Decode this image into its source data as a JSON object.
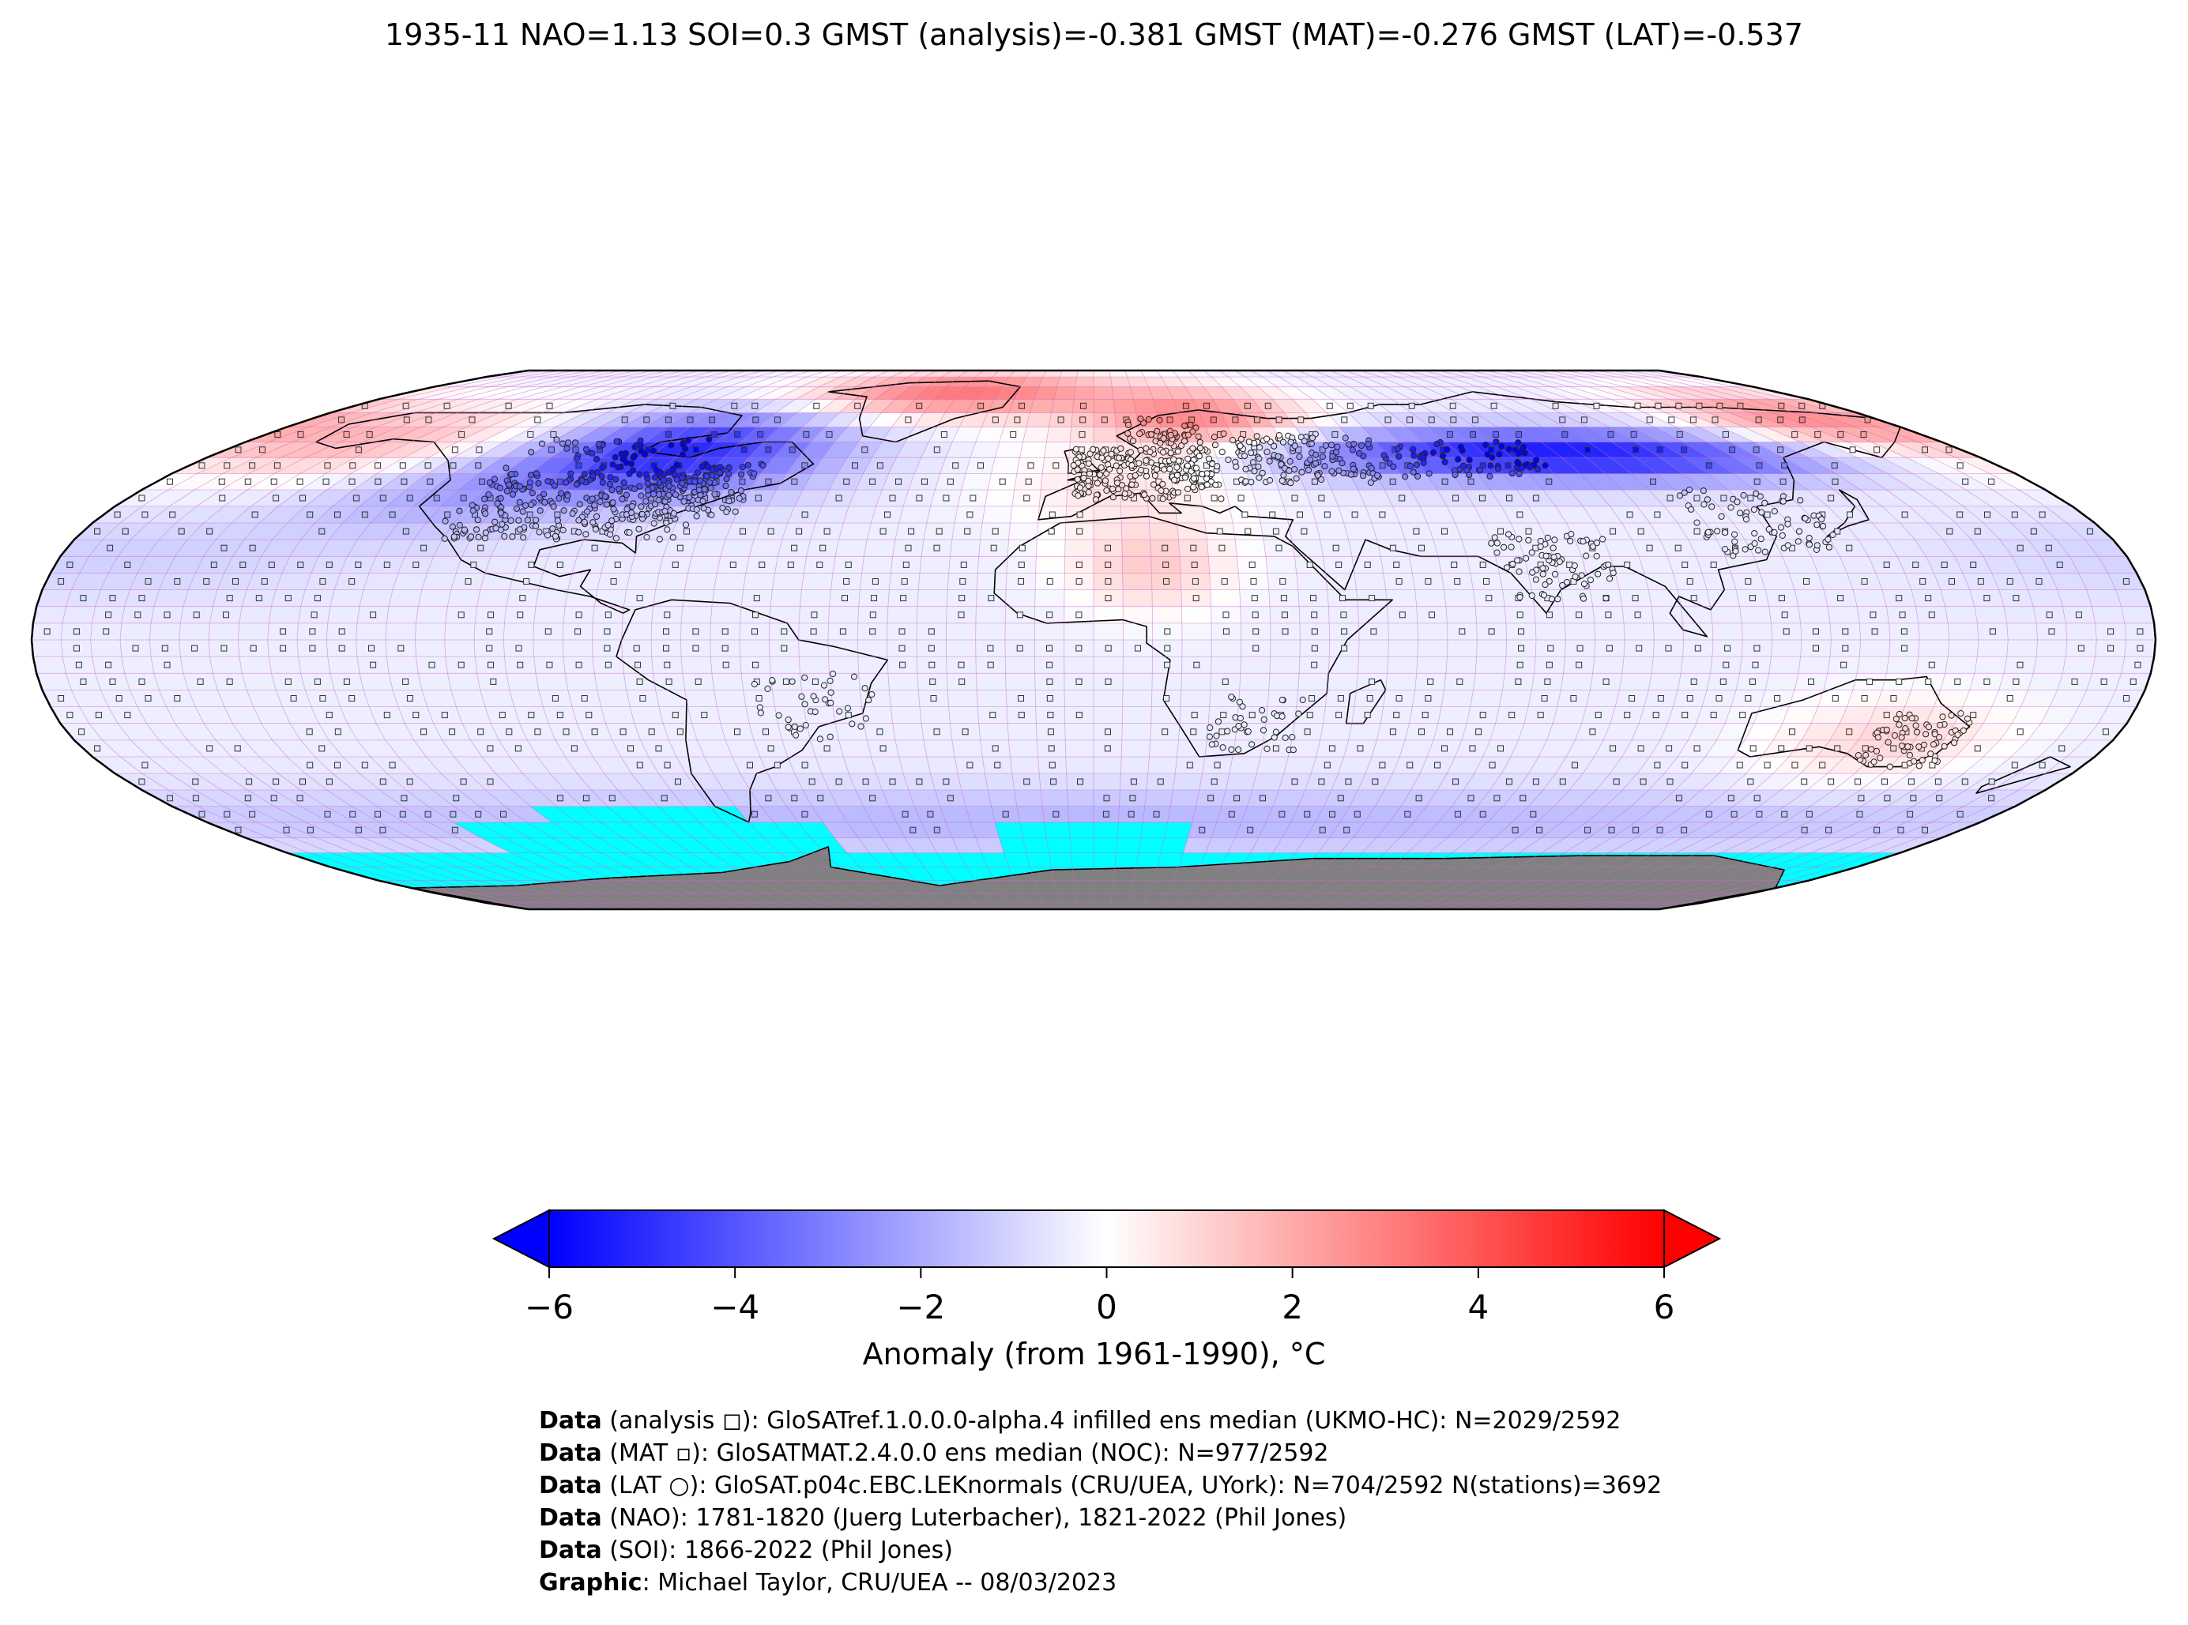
{
  "title": "1935-11 NAO=1.13 SOI=0.3 GMST (analysis)=-0.381 GMST (MAT)=-0.276 GMST (LAT)=-0.537",
  "colorbar": {
    "label": "Anomaly (from 1961-1990), °C",
    "ticks": [
      "−6",
      "−4",
      "−2",
      "0",
      "2",
      "4",
      "6"
    ],
    "min": -6,
    "max": 6,
    "colors": {
      "low": "#0000ff",
      "mid": "#ffffff",
      "high": "#ff0000"
    }
  },
  "map": {
    "projection": "Robinson",
    "grid_resolution_deg": 5,
    "missing_color": "#00ffff",
    "land_mask_color": "#808080",
    "gridline_color": "#cc66cc",
    "anomaly_regions": [
      {
        "region": "North America (Canada / northern US)",
        "anomaly": -4.5
      },
      {
        "region": "Greenland",
        "anomaly": 3.5
      },
      {
        "region": "Scandinavia",
        "anomaly": 3.0
      },
      {
        "region": "Central Siberia",
        "anomaly": -5.0
      },
      {
        "region": "Alaska / NE Pacific",
        "anomaly": 2.0
      },
      {
        "region": "Eastern Siberia",
        "anomaly": 2.5
      },
      {
        "region": "Western Europe",
        "anomaly": 1.0
      },
      {
        "region": "Sahara",
        "anomaly": 1.5
      },
      {
        "region": "Tropics",
        "anomaly": -0.3
      },
      {
        "region": "Southern Ocean",
        "anomaly": -1.5
      },
      {
        "region": "Eastern Australia",
        "anomaly": 1.2
      }
    ]
  },
  "credits": [
    {
      "bold": "Data",
      "text": " (analysis ◻): GloSATref.1.0.0.0-alpha.4 infilled ens median (UKMO-HC): N=2029/2592"
    },
    {
      "bold": "Data",
      "text": " (MAT ▫): GloSATMAT.2.4.0.0 ens median (NOC): N=977/2592"
    },
    {
      "bold": "Data",
      "text": " (LAT ○): GloSAT.p04c.EBC.LEKnormals (CRU/UEA, UYork): N=704/2592 N(stations)=3692"
    },
    {
      "bold": "Data",
      "text": " (NAO): 1781-1820 (Juerg Luterbacher), 1821-2022 (Phil Jones)"
    },
    {
      "bold": "Data",
      "text": " (SOI): 1866-2022 (Phil Jones)"
    },
    {
      "bold": "Graphic",
      "text": ": Michael Taylor, CRU/UEA -- 08/03/2023"
    }
  ]
}
